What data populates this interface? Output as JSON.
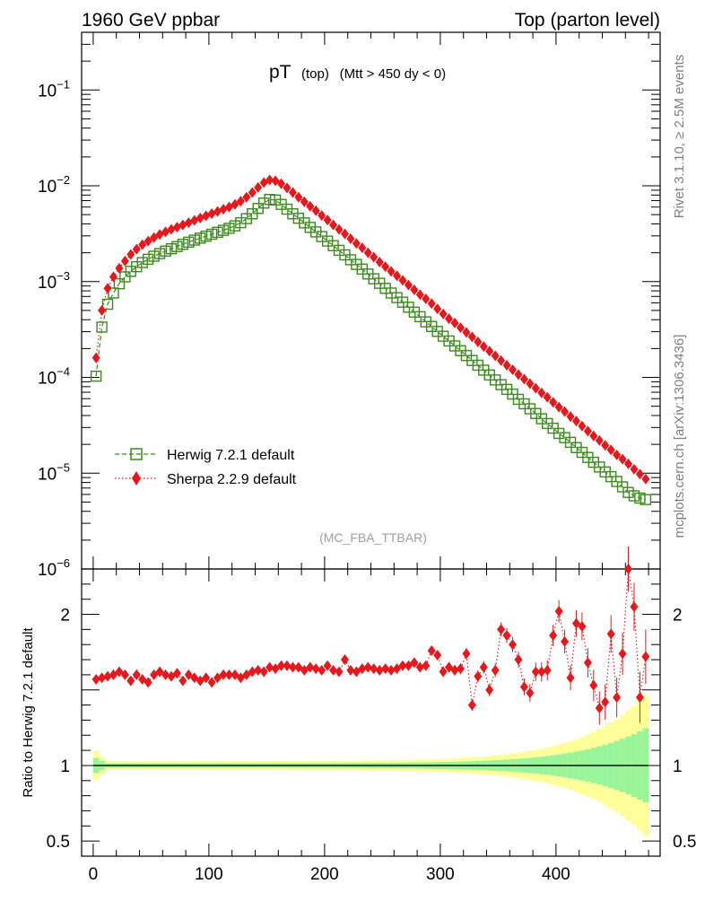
{
  "header": {
    "left": "1960 GeV ppbar",
    "right": "Top (parton level)"
  },
  "side": {
    "rivet": "Rivet 3.1.10, ≥ 2.5M events",
    "mcplots": "mcplots.cern.ch [arXiv:1306.3436]"
  },
  "chart_data": {
    "type": "line",
    "title_main": "pT",
    "title_sub1": "(top)",
    "title_sub2": "(Mtt > 450 dy < 0)",
    "watermark": "(MC_FBA_TTBAR)",
    "xlim": [
      -10,
      490
    ],
    "ylim": [
      1e-06,
      0.4
    ],
    "yscale": "log",
    "ratio_ylabel": "Ratio to Herwig 7.2.1 default",
    "ratio_ylim": [
      0.4,
      2.3
    ],
    "x_ticks": [
      "0",
      "100",
      "200",
      "300",
      "400"
    ],
    "ratio_ticks": [
      "0.5",
      "1",
      "2"
    ],
    "legend_position": "bottom-left",
    "x": [
      2.5,
      7.5,
      12.5,
      17.5,
      22.5,
      27.5,
      32.5,
      37.5,
      42.5,
      47.5,
      52.5,
      57.5,
      62.5,
      67.5,
      72.5,
      77.5,
      82.5,
      87.5,
      92.5,
      97.5,
      102.5,
      107.5,
      112.5,
      117.5,
      122.5,
      127.5,
      132.5,
      137.5,
      142.5,
      147.5,
      152.5,
      157.5,
      162.5,
      167.5,
      172.5,
      177.5,
      182.5,
      187.5,
      192.5,
      197.5,
      202.5,
      207.5,
      212.5,
      217.5,
      222.5,
      227.5,
      232.5,
      237.5,
      242.5,
      247.5,
      252.5,
      257.5,
      262.5,
      267.5,
      272.5,
      277.5,
      282.5,
      287.5,
      292.5,
      297.5,
      302.5,
      307.5,
      312.5,
      317.5,
      322.5,
      327.5,
      332.5,
      337.5,
      342.5,
      347.5,
      352.5,
      357.5,
      362.5,
      367.5,
      372.5,
      377.5,
      382.5,
      387.5,
      392.5,
      397.5,
      402.5,
      407.5,
      412.5,
      417.5,
      422.5,
      427.5,
      432.5,
      437.5,
      442.5,
      447.5,
      452.5,
      457.5,
      462.5,
      467.5,
      472.5,
      477.5
    ],
    "series": [
      {
        "name": "Herwig 7.2.1 default",
        "color": "#3a8a1c",
        "marker": "open-square",
        "linestyle": "dashed",
        "values": [
          0.000103,
          0.000335,
          0.00058,
          0.00076,
          0.00095,
          0.00112,
          0.00128,
          0.00143,
          0.00158,
          0.00171,
          0.00184,
          0.00196,
          0.00208,
          0.0022,
          0.00232,
          0.00245,
          0.00258,
          0.00271,
          0.00284,
          0.00298,
          0.00312,
          0.00327,
          0.00343,
          0.0036,
          0.00382,
          0.00412,
          0.00454,
          0.0051,
          0.0058,
          0.0066,
          0.0072,
          0.0071,
          0.0064,
          0.0057,
          0.0051,
          0.00458,
          0.0041,
          0.00368,
          0.0033,
          0.00295,
          0.00265,
          0.00237,
          0.00212,
          0.0019,
          0.00169,
          0.00151,
          0.00135,
          0.0012,
          0.00107,
          0.00096,
          0.00085,
          0.00076,
          0.00068,
          0.00061,
          0.00054,
          0.00048,
          0.00043,
          0.00038,
          0.00034,
          0.000302,
          0.000269,
          0.00024,
          0.000213,
          0.00019,
          0.000169,
          0.00015,
          0.000134,
          0.000119,
          0.000106,
          9.4e-05,
          8.4e-05,
          7.5e-05,
          6.7e-05,
          5.9e-05,
          5.3e-05,
          4.7e-05,
          4.2e-05,
          3.7e-05,
          3.3e-05,
          2.95e-05,
          2.6e-05,
          2.35e-05,
          2.1e-05,
          1.85e-05,
          1.65e-05,
          1.46e-05,
          1.3e-05,
          1.16e-05,
          1.03e-05,
          9.2e-06,
          8.2e-06,
          7.2e-06,
          6.3e-06,
          5.8e-06,
          5.5e-06,
          5.3e-06
        ]
      },
      {
        "name": "Sherpa 2.2.9 default",
        "color": "#e8171c",
        "marker": "filled-diamond",
        "linestyle": "dotted",
        "values": [
          0.00016,
          0.0005,
          0.00085,
          0.00112,
          0.00138,
          0.00164,
          0.00192,
          0.00218,
          0.00243,
          0.00265,
          0.00288,
          0.0031,
          0.0033,
          0.0035,
          0.0037,
          0.0039,
          0.00412,
          0.00436,
          0.0046,
          0.00486,
          0.00512,
          0.0054,
          0.0057,
          0.006,
          0.0064,
          0.0069,
          0.0076,
          0.0085,
          0.0096,
          0.0108,
          0.0115,
          0.0113,
          0.0105,
          0.0095,
          0.0085,
          0.0076,
          0.0068,
          0.0061,
          0.0055,
          0.0049,
          0.0044,
          0.0039,
          0.0035,
          0.00315,
          0.0028,
          0.0025,
          0.00225,
          0.002,
          0.0018,
          0.0016,
          0.00143,
          0.00128,
          0.00115,
          0.00103,
          0.00092,
          0.00082,
          0.00073,
          0.00066,
          0.00059,
          0.00052,
          0.00046,
          0.00041,
          0.00037,
          0.00033,
          0.000295,
          0.000265,
          0.000235,
          0.00021,
          0.000188,
          0.000168,
          0.00015,
          0.000134,
          0.00012,
          0.000107,
          9.6e-05,
          8.6e-05,
          7.7e-05,
          6.9e-05,
          6.2e-05,
          5.5e-05,
          4.9e-05,
          4.4e-05,
          3.9e-05,
          3.5e-05,
          3.1e-05,
          2.75e-05,
          2.45e-05,
          2.2e-05,
          1.95e-05,
          1.75e-05,
          1.55e-05,
          1.4e-05,
          1.25e-05,
          1.1e-05,
          9.8e-06,
          8.7e-06
        ],
        "ratio": [
          1.57,
          1.58,
          1.59,
          1.6,
          1.62,
          1.6,
          1.56,
          1.6,
          1.57,
          1.55,
          1.6,
          1.62,
          1.6,
          1.59,
          1.61,
          1.56,
          1.6,
          1.58,
          1.56,
          1.58,
          1.55,
          1.58,
          1.6,
          1.6,
          1.6,
          1.58,
          1.6,
          1.62,
          1.63,
          1.62,
          1.65,
          1.64,
          1.66,
          1.66,
          1.65,
          1.65,
          1.63,
          1.65,
          1.64,
          1.63,
          1.66,
          1.63,
          1.62,
          1.7,
          1.63,
          1.62,
          1.64,
          1.65,
          1.64,
          1.63,
          1.64,
          1.63,
          1.64,
          1.66,
          1.66,
          1.68,
          1.65,
          1.66,
          1.76,
          1.73,
          1.62,
          1.65,
          1.63,
          1.64,
          1.74,
          1.4,
          1.59,
          1.65,
          1.5,
          1.63,
          1.9,
          1.86,
          1.8,
          1.7,
          1.52,
          1.48,
          1.62,
          1.62,
          1.63,
          1.86,
          2.02,
          1.82,
          1.58,
          1.94,
          1.92,
          1.68,
          1.53,
          1.38,
          1.42,
          1.87,
          1.45,
          1.74,
          2.3,
          2.05,
          1.45,
          1.72
        ]
      }
    ]
  }
}
